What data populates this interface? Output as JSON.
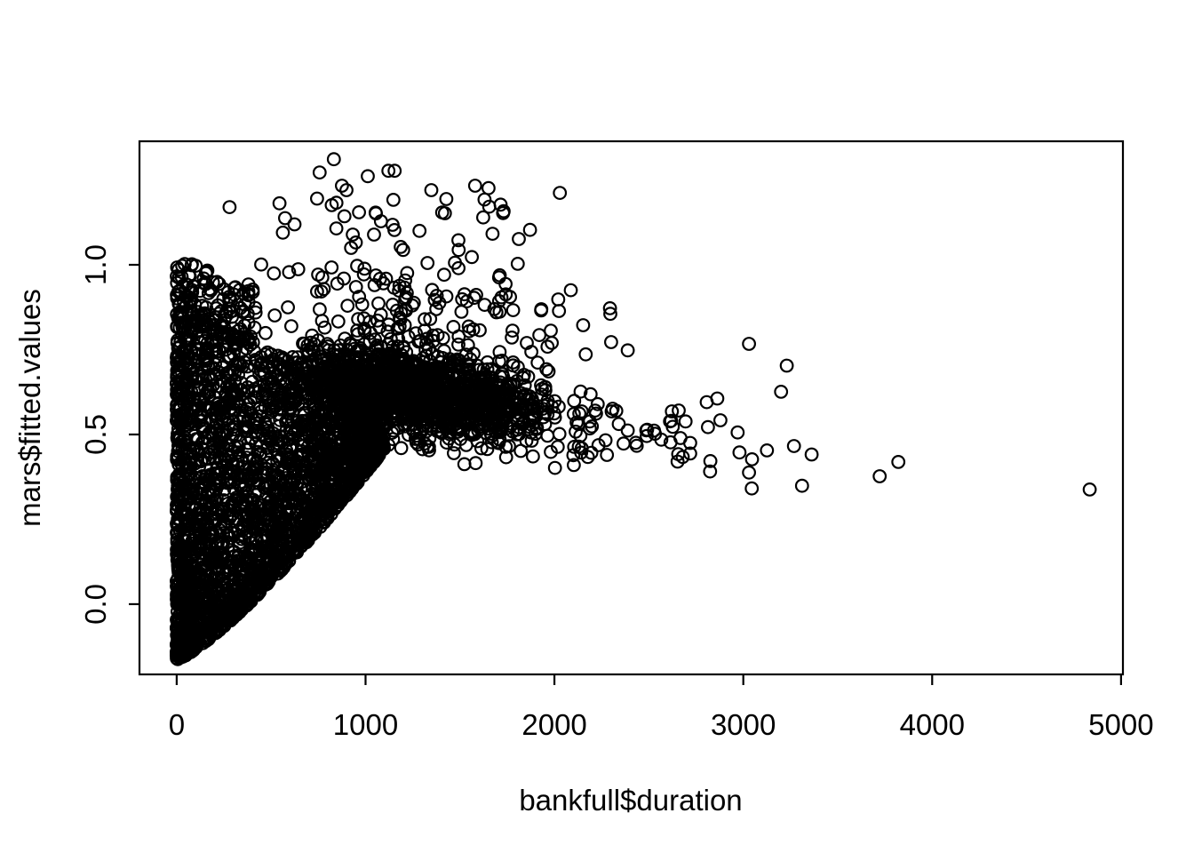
{
  "colors": {
    "foreground": "#000000",
    "background": "#ffffff"
  },
  "chart_data": {
    "type": "scatter",
    "title": "",
    "xlabel": "bankfull$duration",
    "ylabel": "mars$fitted.values",
    "grid": false,
    "legend": null,
    "marker": {
      "shape": "open-circle",
      "radius_px": 6.8,
      "stroke_px": 2.2,
      "color": "#000000"
    },
    "x_axis": {
      "label": "bankfull$duration",
      "tick_labels": [
        "0",
        "1000",
        "2000",
        "3000",
        "4000",
        "5000"
      ],
      "tick_values": [
        0,
        1000,
        2000,
        3000,
        4000,
        5000
      ],
      "range": [
        -197,
        5010
      ]
    },
    "y_axis": {
      "label": "mars$fitted.values",
      "tick_labels": [
        "0.0",
        "0.5",
        "1.0"
      ],
      "tick_values": [
        0,
        0.5,
        1.0
      ],
      "range": [
        -0.207,
        1.364
      ]
    },
    "data_extent": {
      "x": [
        0,
        4834
      ],
      "y": [
        -0.163,
        1.322
      ]
    },
    "n_points_rendered": 4417,
    "model": {
      "seed": 1234567,
      "envelope": {
        "y0": -0.163,
        "amp": 0.62,
        "scale": 1100,
        "power": 1.25
      },
      "clusters": [
        {
          "kind": "wedge",
          "n": 2600,
          "x_max": 1100,
          "x_pow": 1.5,
          "cap_base": 0.85,
          "cap_slope": -0.00022,
          "y_pow": 1.5
        },
        {
          "kind": "fringe",
          "n": 150,
          "x_max": 420,
          "x_pow": 1.3,
          "cap_base": 0.85,
          "cap_slope": -0.00022,
          "height": 0.17,
          "v_pow": 2
        },
        {
          "kind": "ridge",
          "n": 1400,
          "x_min": 550,
          "x_range": 1550,
          "mode": 0.4,
          "y_base": 0.685,
          "y_slope": -9e-05,
          "sd": 0.062,
          "env_clamp_until": 1100
        },
        {
          "kind": "strip",
          "n": 55,
          "x_min": 2100,
          "x_range": 780,
          "x_pow": 1.6,
          "y_mean": 0.525,
          "sd": 0.055,
          "y_min": 0.41,
          "y_max": 0.66
        },
        {
          "kind": "cloud",
          "n": 110,
          "x_mean": 1200,
          "x_sd": 500,
          "x_min": 380,
          "x_max": 2300,
          "y_base": 0.73,
          "y_amp": 0.22,
          "v_pow": 1
        },
        {
          "kind": "cloud",
          "n": 60,
          "x_mean": 1050,
          "x_sd": 350,
          "x_min": 250,
          "x_max": 2150,
          "y_base": 0.95,
          "y_amp": 0.25,
          "v_pow": 1.2
        }
      ],
      "points": [
        [
          832,
          1.311
        ],
        [
          757,
          1.272
        ],
        [
          875,
          1.233
        ],
        [
          899,
          1.22
        ],
        [
          1012,
          1.261
        ],
        [
          1121,
          1.277
        ],
        [
          1154,
          1.277
        ],
        [
          1348,
          1.22
        ],
        [
          1580,
          1.233
        ],
        [
          1651,
          1.226
        ],
        [
          2029,
          1.212
        ],
        [
          1806,
          1.003
        ],
        [
          1707,
          0.963
        ],
        [
          1707,
          0.893
        ],
        [
          2024,
          0.864
        ],
        [
          2294,
          0.872
        ],
        [
          2152,
          0.822
        ],
        [
          1981,
          0.806
        ],
        [
          1778,
          0.806
        ],
        [
          1920,
          0.793
        ],
        [
          1986,
          0.77
        ],
        [
          2388,
          0.748
        ],
        [
          2615,
          0.477
        ],
        [
          2719,
          0.475
        ],
        [
          2719,
          0.444
        ],
        [
          2652,
          0.42
        ],
        [
          2824,
          0.391
        ],
        [
          2980,
          0.447
        ],
        [
          2970,
          0.506
        ],
        [
          3030,
          0.767
        ],
        [
          3230,
          0.703
        ],
        [
          3200,
          0.626
        ],
        [
          3046,
          0.427
        ],
        [
          3125,
          0.453
        ],
        [
          3030,
          0.388
        ],
        [
          3045,
          0.341
        ],
        [
          3311,
          0.349
        ],
        [
          3268,
          0.466
        ],
        [
          3362,
          0.441
        ],
        [
          3722,
          0.377
        ],
        [
          3821,
          0.419
        ],
        [
          4834,
          0.338
        ]
      ]
    }
  }
}
